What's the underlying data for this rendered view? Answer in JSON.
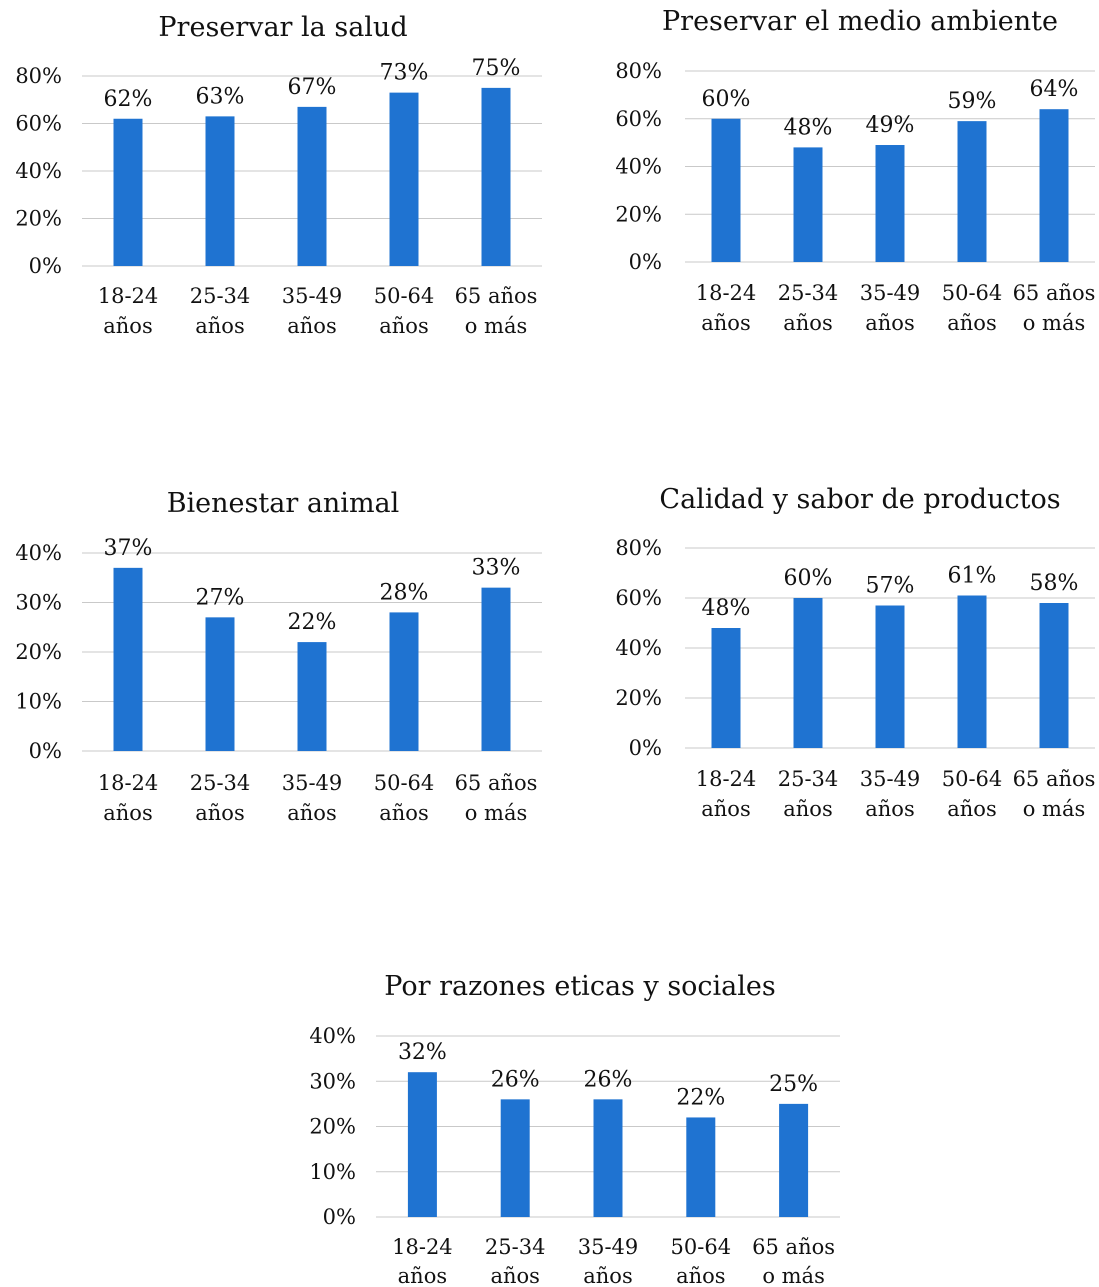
{
  "chart_data": [
    {
      "type": "bar",
      "title": "Preservar la salud",
      "categories": [
        [
          "18-24",
          "años"
        ],
        [
          "25-34",
          "años"
        ],
        [
          "35-49",
          "años"
        ],
        [
          "50-64",
          "años"
        ],
        [
          "65 años",
          "o más"
        ]
      ],
      "values": [
        62,
        63,
        67,
        73,
        75
      ],
      "value_labels": [
        "62%",
        "63%",
        "67%",
        "73%",
        "75%"
      ],
      "ylim": [
        0,
        80
      ],
      "yticks": [
        0,
        20,
        40,
        60,
        80
      ],
      "ytick_labels": [
        "0%",
        "20%",
        "40%",
        "60%",
        "80%"
      ],
      "grid": true,
      "color": "#1f73d1"
    },
    {
      "type": "bar",
      "title": "Preservar el medio ambiente",
      "categories": [
        [
          "18-24",
          "años"
        ],
        [
          "25-34",
          "años"
        ],
        [
          "35-49",
          "años"
        ],
        [
          "50-64",
          "años"
        ],
        [
          "65 años",
          "o más"
        ]
      ],
      "values": [
        60,
        48,
        49,
        59,
        64
      ],
      "value_labels": [
        "60%",
        "48%",
        "49%",
        "59%",
        "64%"
      ],
      "ylim": [
        0,
        80
      ],
      "yticks": [
        0,
        20,
        40,
        60,
        80
      ],
      "ytick_labels": [
        "0%",
        "20%",
        "40%",
        "60%",
        "80%"
      ],
      "grid": true,
      "color": "#1f73d1"
    },
    {
      "type": "bar",
      "title": "Bienestar animal",
      "categories": [
        [
          "18-24",
          "años"
        ],
        [
          "25-34",
          "años"
        ],
        [
          "35-49",
          "años"
        ],
        [
          "50-64",
          "años"
        ],
        [
          "65 años",
          "o más"
        ]
      ],
      "values": [
        37,
        27,
        22,
        28,
        33
      ],
      "value_labels": [
        "37%",
        "27%",
        "22%",
        "28%",
        "33%"
      ],
      "ylim": [
        0,
        40
      ],
      "yticks": [
        0,
        10,
        20,
        30,
        40
      ],
      "ytick_labels": [
        "0%",
        "10%",
        "20%",
        "30%",
        "40%"
      ],
      "grid": true,
      "color": "#1f73d1"
    },
    {
      "type": "bar",
      "title": "Calidad y sabor de productos",
      "categories": [
        [
          "18-24",
          "años"
        ],
        [
          "25-34",
          "años"
        ],
        [
          "35-49",
          "años"
        ],
        [
          "50-64",
          "años"
        ],
        [
          "65 años",
          "o más"
        ]
      ],
      "values": [
        48,
        60,
        57,
        61,
        58
      ],
      "value_labels": [
        "48%",
        "60%",
        "57%",
        "61%",
        "58%"
      ],
      "ylim": [
        0,
        80
      ],
      "yticks": [
        0,
        20,
        40,
        60,
        80
      ],
      "ytick_labels": [
        "0%",
        "20%",
        "40%",
        "60%",
        "80%"
      ],
      "grid": true,
      "color": "#1f73d1"
    },
    {
      "type": "bar",
      "title": "Por razones eticas y sociales",
      "categories": [
        [
          "18-24",
          "años"
        ],
        [
          "25-34",
          "años"
        ],
        [
          "35-49",
          "años"
        ],
        [
          "50-64",
          "años"
        ],
        [
          "65 años",
          "o más"
        ]
      ],
      "values": [
        32,
        26,
        26,
        22,
        25
      ],
      "value_labels": [
        "32%",
        "26%",
        "26%",
        "22%",
        "25%"
      ],
      "ylim": [
        0,
        40
      ],
      "yticks": [
        0,
        10,
        20,
        30,
        40
      ],
      "ytick_labels": [
        "0%",
        "10%",
        "20%",
        "30%",
        "40%"
      ],
      "grid": true,
      "color": "#1f73d1"
    }
  ]
}
